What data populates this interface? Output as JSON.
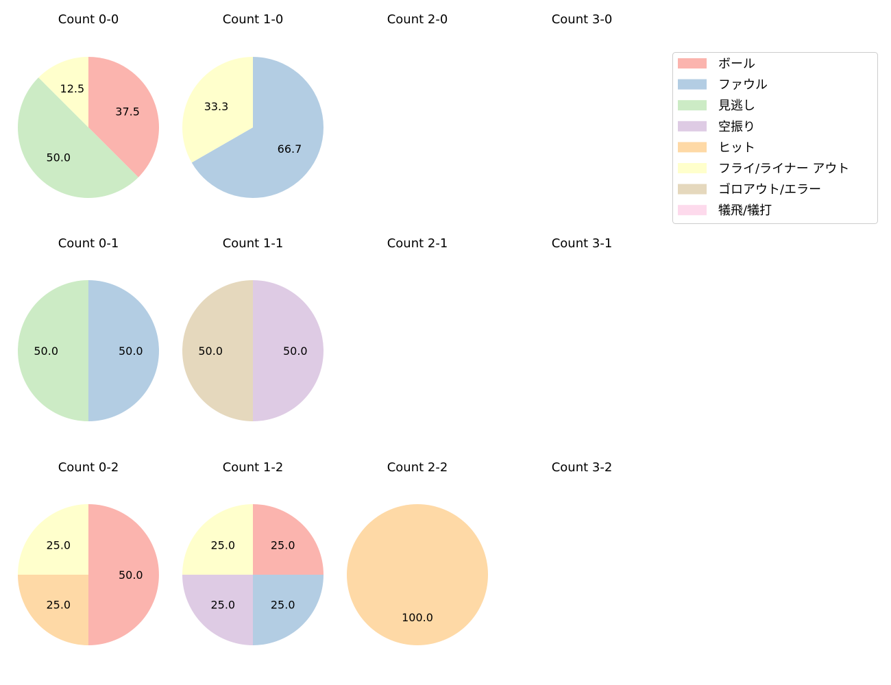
{
  "chart_data": {
    "type": "pie",
    "layout": {
      "rows": 3,
      "cols": 4,
      "start_angle": 90,
      "direction": "clockwise"
    },
    "legend": {
      "position": "upper-right",
      "entries": [
        {
          "label": "ボール",
          "color": "#fbb4ae"
        },
        {
          "label": "ファウル",
          "color": "#b3cde3"
        },
        {
          "label": "見逃し",
          "color": "#ccebc5"
        },
        {
          "label": "空振り",
          "color": "#decbe4"
        },
        {
          "label": "ヒット",
          "color": "#fed9a6"
        },
        {
          "label": "フライ/ライナー アウト",
          "color": "#ffffcc"
        },
        {
          "label": "ゴロアウト/エラー",
          "color": "#e5d8bd"
        },
        {
          "label": "犠飛/犠打",
          "color": "#fddaec"
        }
      ]
    },
    "subplots": [
      {
        "title": "Count 0-0",
        "row": 0,
        "col": 0,
        "slices": [
          {
            "category": "ボール",
            "value": 37.5
          },
          {
            "category": "見逃し",
            "value": 50.0
          },
          {
            "category": "フライ/ライナー アウト",
            "value": 12.5
          }
        ]
      },
      {
        "title": "Count 1-0",
        "row": 0,
        "col": 1,
        "slices": [
          {
            "category": "ファウル",
            "value": 66.7
          },
          {
            "category": "フライ/ライナー アウト",
            "value": 33.3
          }
        ]
      },
      {
        "title": "Count 2-0",
        "row": 0,
        "col": 2,
        "slices": []
      },
      {
        "title": "Count 3-0",
        "row": 0,
        "col": 3,
        "slices": []
      },
      {
        "title": "Count 0-1",
        "row": 1,
        "col": 0,
        "slices": [
          {
            "category": "ファウル",
            "value": 50.0
          },
          {
            "category": "見逃し",
            "value": 50.0
          }
        ]
      },
      {
        "title": "Count 1-1",
        "row": 1,
        "col": 1,
        "slices": [
          {
            "category": "空振り",
            "value": 50.0
          },
          {
            "category": "ゴロアウト/エラー",
            "value": 50.0
          }
        ]
      },
      {
        "title": "Count 2-1",
        "row": 1,
        "col": 2,
        "slices": []
      },
      {
        "title": "Count 3-1",
        "row": 1,
        "col": 3,
        "slices": []
      },
      {
        "title": "Count 0-2",
        "row": 2,
        "col": 0,
        "slices": [
          {
            "category": "ボール",
            "value": 50.0
          },
          {
            "category": "ヒット",
            "value": 25.0
          },
          {
            "category": "フライ/ライナー アウト",
            "value": 25.0
          }
        ]
      },
      {
        "title": "Count 1-2",
        "row": 2,
        "col": 1,
        "slices": [
          {
            "category": "ボール",
            "value": 25.0
          },
          {
            "category": "ファウル",
            "value": 25.0
          },
          {
            "category": "空振り",
            "value": 25.0
          },
          {
            "category": "フライ/ライナー アウト",
            "value": 25.0
          }
        ]
      },
      {
        "title": "Count 2-2",
        "row": 2,
        "col": 2,
        "slices": [
          {
            "category": "ヒット",
            "value": 100.0
          }
        ]
      },
      {
        "title": "Count 3-2",
        "row": 2,
        "col": 3,
        "slices": []
      }
    ]
  }
}
